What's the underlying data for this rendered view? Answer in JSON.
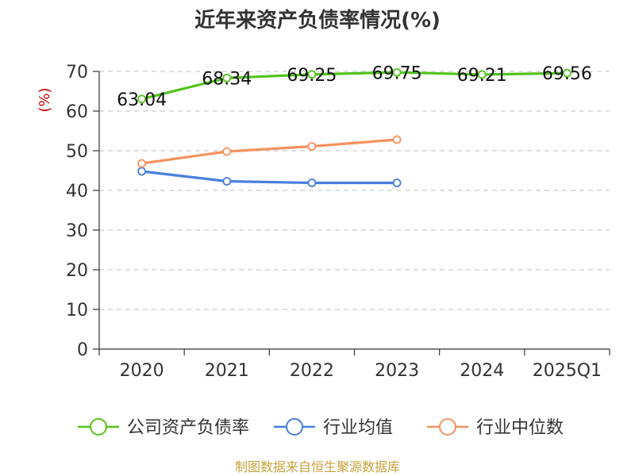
{
  "chart_data": {
    "type": "line",
    "title": "近年来资产负债率情况(%)",
    "ylabel": "(%)",
    "xlabel": "",
    "categories": [
      "2020",
      "2021",
      "2022",
      "2023",
      "2024",
      "2025Q1"
    ],
    "ylim": [
      0,
      70
    ],
    "yticks": [
      0,
      10,
      20,
      30,
      40,
      50,
      60,
      70
    ],
    "grid": true,
    "legend_position": "bottom",
    "series": [
      {
        "name": "公司资产负债率",
        "color": "#52c41a",
        "values": [
          63.04,
          68.34,
          69.25,
          69.75,
          69.21,
          69.56
        ],
        "labels": [
          "63.04",
          "68.34",
          "69.25",
          "69.75",
          "69.21",
          "69.56"
        ]
      },
      {
        "name": "行业均值",
        "color": "#4a7fdc",
        "values": [
          44.8,
          42.3,
          41.9,
          41.9,
          null,
          null
        ]
      },
      {
        "name": "行业中位数",
        "color": "#f5925e",
        "values": [
          46.8,
          49.8,
          51.1,
          52.8,
          null,
          null
        ]
      }
    ]
  },
  "source": "制图数据来自恒生聚源数据库"
}
